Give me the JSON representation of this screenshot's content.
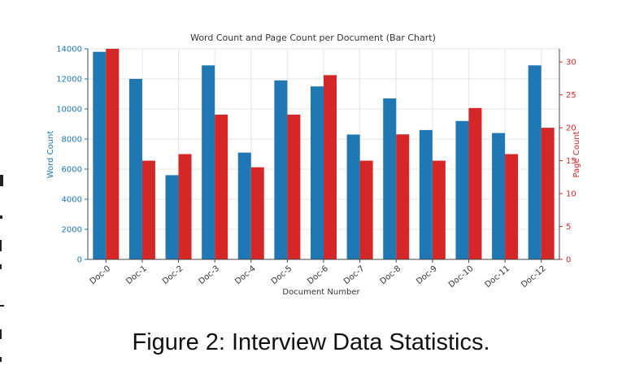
{
  "caption": "Figure 2: Interview Data Statistics.",
  "colors": {
    "word": "#1f77b4",
    "page": "#d62728",
    "grid": "#e6e6e6",
    "axis": "#444444"
  },
  "chart_data": {
    "type": "bar",
    "title": "Word Count and Page Count per Document (Bar Chart)",
    "xlabel": "Document Number",
    "ylabel_left": "Word Count",
    "ylabel_right": "Page Count",
    "categories": [
      "Doc-0",
      "Doc-1",
      "Doc-2",
      "Doc-3",
      "Doc-4",
      "Doc-5",
      "Doc-6",
      "Doc-7",
      "Doc-8",
      "Doc-9",
      "Doc-10",
      "Doc-11",
      "Doc-12"
    ],
    "series": [
      {
        "axis": "left",
        "values": [
          13800,
          12000,
          5600,
          12900,
          7100,
          11900,
          11500,
          8300,
          10700,
          8600,
          9200,
          8400,
          12900
        ]
      },
      {
        "axis": "right",
        "values": [
          32,
          15,
          16,
          22,
          14,
          22,
          28,
          15,
          19,
          15,
          23,
          16,
          20
        ]
      }
    ],
    "ylim_left": [
      0,
      14000
    ],
    "yticks_left": [
      0,
      2000,
      4000,
      6000,
      8000,
      10000,
      12000,
      14000
    ],
    "ylim_right": [
      0,
      32
    ],
    "yticks_right": [
      0,
      5,
      10,
      15,
      20,
      25,
      30
    ],
    "grid": true,
    "legend": "none"
  }
}
